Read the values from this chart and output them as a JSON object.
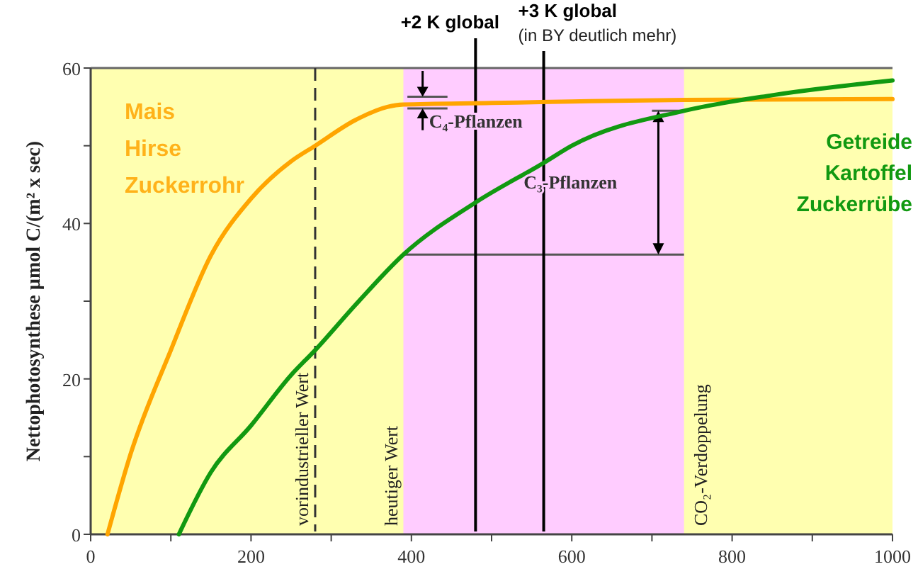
{
  "chart_data": {
    "type": "line",
    "ylabel": "Nettophotosynthese µmol C/(m² x sec)",
    "xlim": [
      0,
      1000
    ],
    "ylim": [
      0,
      60
    ],
    "xticks": [
      0,
      {
        "value": 100,
        "label": null
      },
      200,
      {
        "value": 300,
        "label": null
      },
      400,
      {
        "value": 500,
        "label": null
      },
      600,
      {
        "value": 700,
        "label": null
      },
      800,
      {
        "value": 900,
        "label": null
      },
      1000
    ],
    "yticks": [
      0,
      {
        "value": 10,
        "label": null
      },
      20,
      {
        "value": 30,
        "label": null
      },
      40,
      {
        "value": 50,
        "label": null
      },
      60
    ],
    "series": [
      {
        "color": "#ffa500",
        "x": [
          21,
          50,
          100,
          150,
          200,
          250,
          280,
          330,
          370,
          390,
          500,
          600,
          740,
          1000
        ],
        "values": [
          0,
          10.4,
          23.7,
          35.9,
          43.2,
          48,
          50,
          53.3,
          55,
          55.3,
          55.5,
          55.7,
          55.9,
          56
        ]
      },
      {
        "color": "#119911",
        "x": [
          110,
          150,
          200,
          250,
          280,
          330,
          390,
          480,
          565,
          600,
          740,
          850,
          1000
        ],
        "values": [
          0,
          8,
          14,
          20.5,
          23.7,
          29.5,
          36,
          42.7,
          47.8,
          50,
          54.5,
          56.5,
          58.4
        ]
      }
    ],
    "bands": [
      {
        "axis": "x",
        "from": 390,
        "to": 740,
        "color": "#ffccff"
      }
    ],
    "ref_lines": [
      {
        "axis": "x",
        "value": 280,
        "label": "vorindustrieller Wert",
        "line_style": "dashed",
        "color": "#333333"
      },
      {
        "axis": "x",
        "value": 480,
        "label": "+2 K global",
        "color": "#000000"
      },
      {
        "axis": "x",
        "value": 565,
        "label": "+3 K global",
        "color": "#000000"
      }
    ],
    "annotations": [
      {
        "text": "heutiger Wert",
        "x": 390,
        "y": 0
      },
      {
        "text": "CO₂-Verdoppelung",
        "x": 740,
        "y": 0
      },
      "(in BY deutlich mehr)",
      "Mais",
      "Hirse",
      "Zuckerrohr",
      "Getreide",
      "Kartoffel",
      "Zuckerrübe",
      "C₄-Pflanzen",
      "C₃-Pflanzen"
    ],
    "grid": false
  }
}
